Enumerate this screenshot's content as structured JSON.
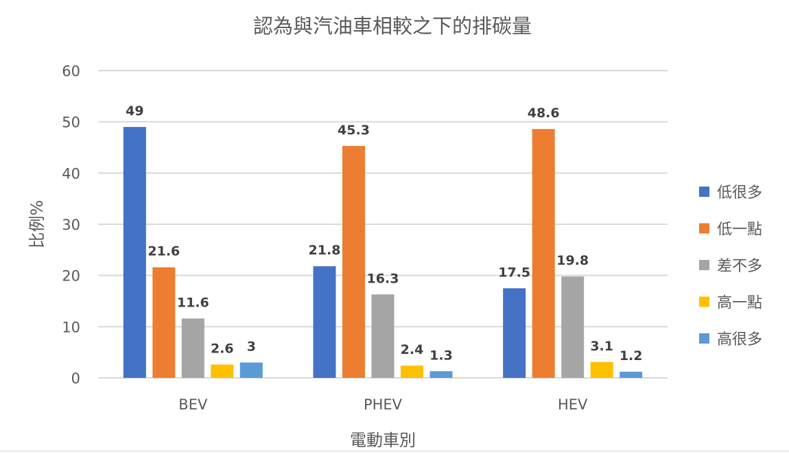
{
  "chart_data": {
    "type": "bar",
    "title": "認為與汽油車相較之下的排碳量",
    "xlabel": "電動車別",
    "ylabel": "比例%",
    "ylim": [
      0,
      60
    ],
    "yticks": [
      "0",
      "10",
      "20",
      "30",
      "40",
      "50",
      "60"
    ],
    "grid": true,
    "legend_position": "right",
    "categories": [
      "BEV",
      "PHEV",
      "HEV"
    ],
    "series": [
      {
        "name": "低很多",
        "color": "#4472C4",
        "values": [
          49,
          21.8,
          17.5
        ],
        "labels": [
          "49",
          "21.8",
          "17.5"
        ]
      },
      {
        "name": "低一點",
        "color": "#ED7D31",
        "values": [
          21.6,
          45.3,
          48.6
        ],
        "labels": [
          "21.6",
          "45.3",
          "48.6"
        ]
      },
      {
        "name": "差不多",
        "color": "#A5A5A5",
        "values": [
          11.6,
          16.3,
          19.8
        ],
        "labels": [
          "11.6",
          "16.3",
          "19.8"
        ]
      },
      {
        "name": "高一點",
        "color": "#FFC000",
        "values": [
          2.6,
          2.4,
          3.1
        ],
        "labels": [
          "2.6",
          "2.4",
          "3.1"
        ]
      },
      {
        "name": "高很多",
        "color": "#5B9BD5",
        "values": [
          3,
          1.3,
          1.2
        ],
        "labels": [
          "3",
          "1.3",
          "1.2"
        ]
      }
    ]
  }
}
